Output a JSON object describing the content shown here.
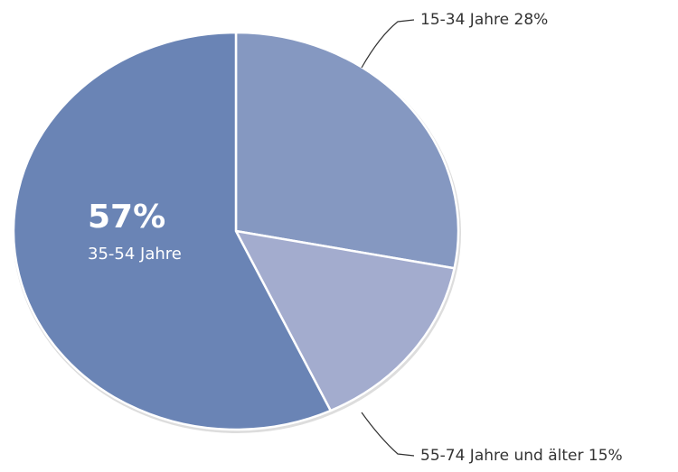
{
  "chart_data": {
    "type": "pie",
    "categories": [
      "15-34 Jahre",
      "55-74 Jahre und älter",
      "35-54 Jahre"
    ],
    "values": [
      28,
      15,
      57
    ],
    "value_labels": [
      "28%",
      "15%",
      "57%"
    ],
    "colors": [
      "#8598c1",
      "#a3acce",
      "#6a84b5"
    ]
  }
}
